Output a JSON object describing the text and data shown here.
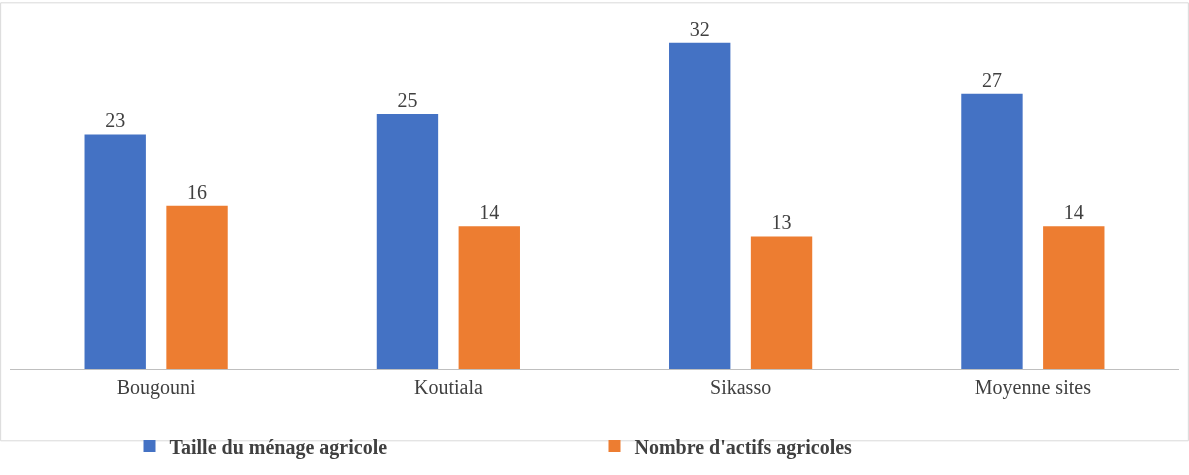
{
  "chart_data": {
    "type": "bar",
    "categories": [
      "Bougouni",
      "Koutiala",
      "Sikasso",
      "Moyenne sites"
    ],
    "series": [
      {
        "name": "Taille du ménage agricole",
        "color": "#4472c4",
        "values": [
          23,
          25,
          32,
          27
        ]
      },
      {
        "name": "Nombre d'actifs agricoles",
        "color": "#ed7d31",
        "values": [
          16,
          14,
          13,
          14
        ]
      }
    ],
    "data_labels": true,
    "legend": "bottom"
  }
}
